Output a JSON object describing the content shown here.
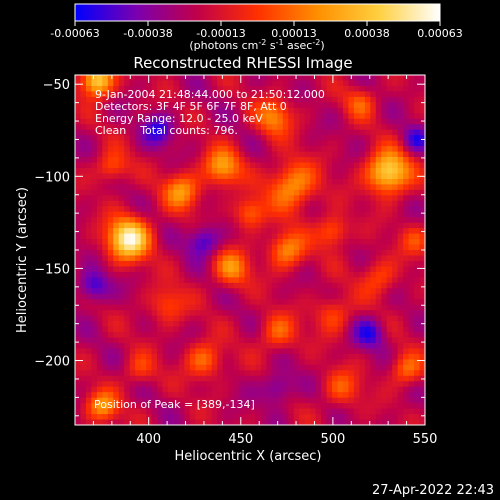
{
  "chart_data": {
    "type": "heatmap",
    "title": "Reconstructed RHESSI Image",
    "colorbar": {
      "ticks": [
        "-0.00063",
        "-0.00038",
        "-0.00013",
        "0.00013",
        "0.00038",
        "0.00063"
      ],
      "range": [
        -0.00063,
        0.00063
      ],
      "colormap_stops": [
        "#0000ff",
        "#7a00b0",
        "#c0004a",
        "#ff3000",
        "#ff9000",
        "#ffd040",
        "#ffffff"
      ],
      "unit_prefix": "(photons cm",
      "unit_exp1": "-2",
      "unit_mid": " s",
      "unit_exp2": "-1",
      "unit_mid2": " asec",
      "unit_exp3": "-2",
      "unit_suffix": ")"
    },
    "xlabel": "Heliocentric X (arcsec)",
    "ylabel": "Heliocentric Y (arcsec)",
    "xlim": [
      360,
      550
    ],
    "ylim": [
      -235,
      -45
    ],
    "xticks": [
      400,
      450,
      500,
      550
    ],
    "yticks": [
      -50,
      -100,
      -150,
      -200
    ],
    "ytick_labels": [
      "−50",
      "−100",
      "−150",
      "−200"
    ],
    "info_lines": [
      "9-Jan-2004 21:48:44.000 to 21:50:12.000",
      "Detectors: 3F 4F 5F 6F 7F 8F, Att 0",
      "Energy Range: 12.0 - 25.0 keV",
      "Clean    Total counts: 796."
    ],
    "peak_label": "Position of Peak = [389,-134]",
    "peak": [
      389,
      -134
    ],
    "sources": [
      {
        "x": 389,
        "y": -134,
        "sigma": 8,
        "amp": 1.0
      },
      {
        "x": 418,
        "y": -108,
        "sigma": 7,
        "amp": 0.55
      },
      {
        "x": 440,
        "y": -95,
        "sigma": 7,
        "amp": 0.6
      },
      {
        "x": 468,
        "y": -68,
        "sigma": 7,
        "amp": 0.5
      },
      {
        "x": 478,
        "y": -105,
        "sigma": 9,
        "amp": 0.6
      },
      {
        "x": 500,
        "y": -130,
        "sigma": 6,
        "amp": 0.45
      },
      {
        "x": 530,
        "y": -98,
        "sigma": 8,
        "amp": 0.9
      },
      {
        "x": 515,
        "y": -60,
        "sigma": 6,
        "amp": 0.35
      },
      {
        "x": 372,
        "y": -48,
        "sigma": 6,
        "amp": 0.9
      },
      {
        "x": 380,
        "y": -95,
        "sigma": 6,
        "amp": 0.4
      },
      {
        "x": 445,
        "y": -150,
        "sigma": 7,
        "amp": 0.5
      },
      {
        "x": 475,
        "y": -140,
        "sigma": 7,
        "amp": 0.55
      },
      {
        "x": 410,
        "y": -170,
        "sigma": 7,
        "amp": 0.35
      },
      {
        "x": 430,
        "y": -200,
        "sigma": 7,
        "amp": 0.45
      },
      {
        "x": 470,
        "y": -185,
        "sigma": 7,
        "amp": 0.4
      },
      {
        "x": 500,
        "y": -175,
        "sigma": 7,
        "amp": 0.35
      },
      {
        "x": 525,
        "y": -155,
        "sigma": 7,
        "amp": 0.35
      },
      {
        "x": 540,
        "y": -205,
        "sigma": 6,
        "amp": 0.45
      },
      {
        "x": 375,
        "y": -225,
        "sigma": 6,
        "amp": 0.55
      },
      {
        "x": 395,
        "y": -205,
        "sigma": 6,
        "amp": 0.3
      },
      {
        "x": 505,
        "y": -215,
        "sigma": 7,
        "amp": 0.35
      },
      {
        "x": 455,
        "y": -120,
        "sigma": 6,
        "amp": 0.45
      },
      {
        "x": 545,
        "y": -135,
        "sigma": 6,
        "amp": 0.3
      }
    ],
    "negative_sources": [
      {
        "x": 430,
        "y": -135,
        "sigma": 6,
        "amp": 0.45
      },
      {
        "x": 405,
        "y": -75,
        "sigma": 6,
        "amp": 0.4
      },
      {
        "x": 520,
        "y": -185,
        "sigma": 6,
        "amp": 0.4
      },
      {
        "x": 370,
        "y": -160,
        "sigma": 6,
        "amp": 0.45
      },
      {
        "x": 545,
        "y": -80,
        "sigma": 5,
        "amp": 0.35
      },
      {
        "x": 470,
        "y": -215,
        "sigma": 6,
        "amp": 0.35
      }
    ]
  },
  "timestamp": "27-Apr-2022 22:43"
}
